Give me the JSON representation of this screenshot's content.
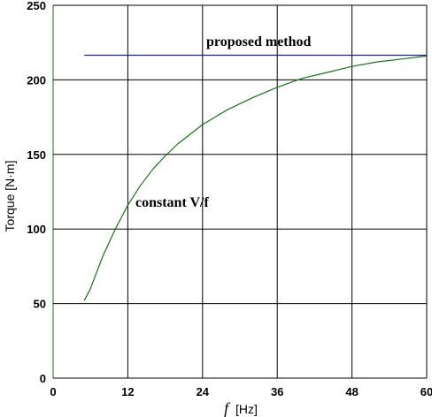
{
  "chart_data": {
    "type": "line",
    "xlabel_symbol": "f",
    "xlabel_unit": "[Hz]",
    "ylabel": "Torque [N·m]",
    "xlim": [
      0,
      60
    ],
    "ylim": [
      0,
      250
    ],
    "x_ticks": [
      "0",
      "12",
      "24",
      "36",
      "48",
      "60"
    ],
    "y_ticks": [
      "0",
      "50",
      "100",
      "150",
      "200",
      "250"
    ],
    "grid": true,
    "series": [
      {
        "name": "proposed method",
        "color": "#1f1f8f",
        "x": [
          5,
          60
        ],
        "y": [
          216.5,
          216.5
        ]
      },
      {
        "name": "constant V/f",
        "color": "#1f6f1f",
        "x": [
          5,
          6,
          8,
          10,
          12,
          14,
          16,
          18,
          20,
          24,
          28,
          32,
          36,
          40,
          44,
          48,
          52,
          56,
          60
        ],
        "y": [
          52,
          60,
          82,
          100,
          116,
          129,
          140,
          149,
          157,
          170,
          180,
          188,
          195,
          201,
          205,
          209,
          212,
          214,
          216
        ]
      }
    ]
  }
}
